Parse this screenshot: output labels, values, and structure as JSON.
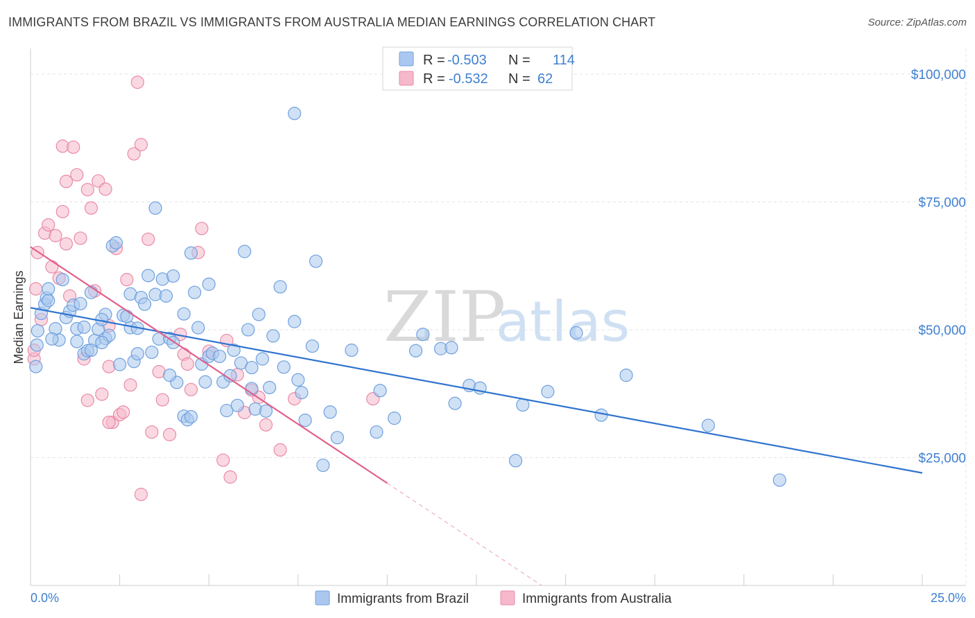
{
  "header": {
    "title": "IMMIGRANTS FROM BRAZIL VS IMMIGRANTS FROM AUSTRALIA MEDIAN EARNINGS CORRELATION CHART",
    "source": "Source: ZipAtlas.com"
  },
  "watermark": {
    "zip": "ZIP",
    "atlas": "atlas"
  },
  "legend": {
    "r_label": "R =",
    "n_label": "N =",
    "rows": [
      {
        "r": "-0.503",
        "n": "114",
        "color": "#aac8ef"
      },
      {
        "r": "-0.532",
        "n": "62",
        "color": "#f6b8cb"
      }
    ]
  },
  "colors": {
    "brazil_fill": "#aac8ef",
    "brazil_stroke": "#6fa0dd",
    "brazil_line": "#2f73d0",
    "australia_fill": "#f6b8cb",
    "australia_stroke": "#e98aa8",
    "australia_line": "#e0608a",
    "grid": "#e3e3e3",
    "tick_text": "#3f7fd0"
  },
  "chart_data": {
    "type": "scatter",
    "title": "IMMIGRANTS FROM BRAZIL VS IMMIGRANTS FROM AUSTRALIA MEDIAN EARNINGS CORRELATION CHART",
    "xlabel": "",
    "ylabel": "Median Earnings",
    "xlim": [
      0,
      25
    ],
    "ylim": [
      0,
      105000
    ],
    "x_tick_labels": [
      "0.0%",
      "25.0%"
    ],
    "y_ticks": [
      25000,
      50000,
      75000,
      100000
    ],
    "y_tick_labels": [
      "$25,000",
      "$50,000",
      "$75,000",
      "$100,000"
    ],
    "grid": true,
    "legend_position": "top-center",
    "series": [
      {
        "name": "Immigrants from Brazil",
        "r": -0.503,
        "n": 114,
        "trend": {
          "x": [
            0,
            25
          ],
          "y": [
            54300,
            22000
          ]
        },
        "points": [
          [
            0.15,
            42800
          ],
          [
            0.18,
            47000
          ],
          [
            0.2,
            49800
          ],
          [
            0.3,
            53200
          ],
          [
            0.4,
            55000
          ],
          [
            0.45,
            56200
          ],
          [
            0.5,
            55700
          ],
          [
            0.5,
            58000
          ],
          [
            0.7,
            50200
          ],
          [
            0.8,
            48000
          ],
          [
            0.9,
            59800
          ],
          [
            1.0,
            52400
          ],
          [
            1.1,
            53600
          ],
          [
            1.2,
            54800
          ],
          [
            1.3,
            50200
          ],
          [
            1.3,
            47700
          ],
          [
            1.5,
            50500
          ],
          [
            1.5,
            45300
          ],
          [
            1.6,
            45900
          ],
          [
            1.7,
            57300
          ],
          [
            1.8,
            47900
          ],
          [
            1.9,
            50100
          ],
          [
            2.1,
            48300
          ],
          [
            2.1,
            53000
          ],
          [
            2.2,
            48900
          ],
          [
            2.3,
            66400
          ],
          [
            2.4,
            67000
          ],
          [
            2.5,
            43200
          ],
          [
            2.6,
            52800
          ],
          [
            2.8,
            50400
          ],
          [
            2.8,
            57000
          ],
          [
            2.9,
            43800
          ],
          [
            3.0,
            45300
          ],
          [
            3.1,
            56300
          ],
          [
            3.2,
            55000
          ],
          [
            3.3,
            60600
          ],
          [
            3.4,
            45600
          ],
          [
            3.5,
            56900
          ],
          [
            3.5,
            73800
          ],
          [
            3.6,
            48200
          ],
          [
            3.7,
            59900
          ],
          [
            3.8,
            56600
          ],
          [
            3.9,
            48300
          ],
          [
            4.0,
            60500
          ],
          [
            4.1,
            39700
          ],
          [
            4.3,
            33100
          ],
          [
            4.3,
            53100
          ],
          [
            4.4,
            32400
          ],
          [
            4.5,
            33000
          ],
          [
            4.5,
            65000
          ],
          [
            4.6,
            57300
          ],
          [
            4.7,
            50400
          ],
          [
            4.8,
            43300
          ],
          [
            4.9,
            39800
          ],
          [
            5.0,
            44800
          ],
          [
            5.1,
            45400
          ],
          [
            5.0,
            58900
          ],
          [
            5.3,
            44800
          ],
          [
            5.4,
            39800
          ],
          [
            5.5,
            34200
          ],
          [
            5.6,
            41000
          ],
          [
            5.7,
            46000
          ],
          [
            5.8,
            35200
          ],
          [
            5.9,
            43500
          ],
          [
            6.0,
            65300
          ],
          [
            6.1,
            50000
          ],
          [
            6.2,
            42600
          ],
          [
            6.3,
            34500
          ],
          [
            6.4,
            53000
          ],
          [
            6.5,
            44300
          ],
          [
            6.7,
            38700
          ],
          [
            6.6,
            34100
          ],
          [
            6.8,
            48800
          ],
          [
            7.0,
            58400
          ],
          [
            7.1,
            42700
          ],
          [
            7.4,
            51600
          ],
          [
            7.5,
            40200
          ],
          [
            7.6,
            37700
          ],
          [
            7.7,
            32300
          ],
          [
            7.9,
            46800
          ],
          [
            8.0,
            63400
          ],
          [
            8.2,
            23500
          ],
          [
            8.4,
            33900
          ],
          [
            8.6,
            28900
          ],
          [
            9.0,
            46000
          ],
          [
            9.8,
            38100
          ],
          [
            9.7,
            30000
          ],
          [
            10.2,
            32700
          ],
          [
            10.8,
            45900
          ],
          [
            11.0,
            49100
          ],
          [
            11.5,
            46300
          ],
          [
            11.8,
            46500
          ],
          [
            11.9,
            35600
          ],
          [
            12.3,
            39100
          ],
          [
            12.6,
            38600
          ],
          [
            13.6,
            24400
          ],
          [
            13.8,
            35300
          ],
          [
            14.5,
            37900
          ],
          [
            15.3,
            49400
          ],
          [
            16.0,
            33300
          ],
          [
            16.7,
            41100
          ],
          [
            19.0,
            31300
          ],
          [
            21.0,
            20600
          ],
          [
            7.4,
            92300
          ],
          [
            4.0,
            47500
          ],
          [
            2.0,
            52000
          ],
          [
            3.0,
            50300
          ],
          [
            2.7,
            52600
          ],
          [
            1.4,
            55100
          ],
          [
            2.0,
            47500
          ],
          [
            1.7,
            46000
          ],
          [
            0.6,
            48200
          ],
          [
            3.9,
            41100
          ],
          [
            6.2,
            38500
          ]
        ]
      },
      {
        "name": "Immigrants from Australia",
        "r": -0.532,
        "n": 62,
        "trend": {
          "x": [
            0,
            10
          ],
          "y": [
            66200,
            20000
          ]
        },
        "points": [
          [
            0.1,
            44300
          ],
          [
            0.15,
            58000
          ],
          [
            0.2,
            65100
          ],
          [
            0.4,
            68900
          ],
          [
            0.5,
            70500
          ],
          [
            0.6,
            62300
          ],
          [
            0.7,
            68400
          ],
          [
            0.8,
            60100
          ],
          [
            0.9,
            73100
          ],
          [
            0.9,
            85900
          ],
          [
            1.0,
            79000
          ],
          [
            1.0,
            66800
          ],
          [
            1.1,
            56600
          ],
          [
            1.2,
            85700
          ],
          [
            1.3,
            80300
          ],
          [
            1.4,
            67900
          ],
          [
            1.5,
            44300
          ],
          [
            1.6,
            36200
          ],
          [
            1.6,
            77400
          ],
          [
            1.7,
            73800
          ],
          [
            1.8,
            57600
          ],
          [
            1.9,
            79100
          ],
          [
            2.0,
            37400
          ],
          [
            2.1,
            77500
          ],
          [
            2.2,
            50800
          ],
          [
            2.2,
            42800
          ],
          [
            2.3,
            31900
          ],
          [
            2.4,
            65900
          ],
          [
            2.5,
            33400
          ],
          [
            2.6,
            33900
          ],
          [
            2.7,
            59800
          ],
          [
            2.8,
            39200
          ],
          [
            2.9,
            84400
          ],
          [
            3.0,
            98400
          ],
          [
            3.1,
            86200
          ],
          [
            3.1,
            17800
          ],
          [
            3.3,
            67700
          ],
          [
            3.4,
            30000
          ],
          [
            3.6,
            41800
          ],
          [
            3.7,
            36300
          ],
          [
            3.9,
            29500
          ],
          [
            4.2,
            49100
          ],
          [
            4.3,
            45200
          ],
          [
            4.4,
            43300
          ],
          [
            4.5,
            38300
          ],
          [
            4.7,
            65100
          ],
          [
            4.8,
            69800
          ],
          [
            5.0,
            45800
          ],
          [
            5.4,
            24500
          ],
          [
            5.5,
            47900
          ],
          [
            5.6,
            21200
          ],
          [
            5.8,
            41200
          ],
          [
            6.0,
            33800
          ],
          [
            6.2,
            38200
          ],
          [
            6.4,
            36800
          ],
          [
            6.6,
            31400
          ],
          [
            7.0,
            26500
          ],
          [
            7.4,
            36500
          ],
          [
            9.6,
            36500
          ],
          [
            0.3,
            52000
          ],
          [
            0.1,
            46000
          ],
          [
            2.2,
            31900
          ]
        ]
      }
    ]
  },
  "bottom_legend": {
    "items": [
      {
        "label": "Immigrants from Brazil"
      },
      {
        "label": "Immigrants from Australia"
      }
    ]
  }
}
